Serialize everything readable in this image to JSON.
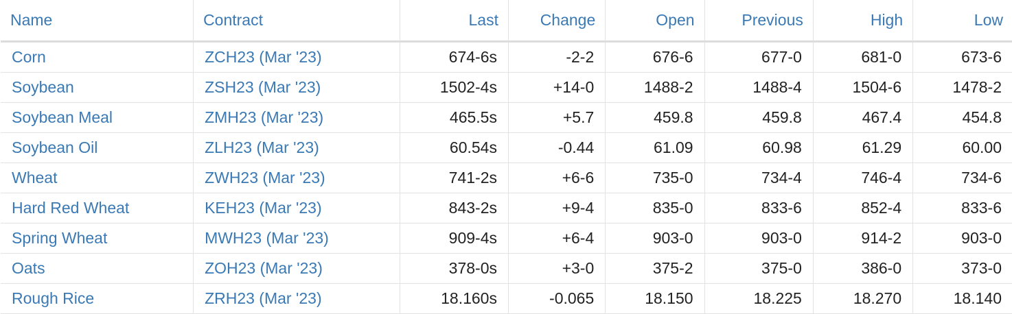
{
  "headers": {
    "name": "Name",
    "contract": "Contract",
    "last": "Last",
    "change": "Change",
    "open": "Open",
    "previous": "Previous",
    "high": "High",
    "low": "Low"
  },
  "colors": {
    "link": "#3a79b4",
    "positive": "#2f9a2f",
    "negative": "#e0201f"
  },
  "rows": [
    {
      "name": "Corn",
      "contract": "ZCH23 (Mar '23)",
      "last": "674-6s",
      "change": "-2-2",
      "direction": "down",
      "open": "676-6",
      "previous": "677-0",
      "high": "681-0",
      "low": "673-6"
    },
    {
      "name": "Soybean",
      "contract": "ZSH23 (Mar '23)",
      "last": "1502-4s",
      "change": "+14-0",
      "direction": "up",
      "open": "1488-2",
      "previous": "1488-4",
      "high": "1504-6",
      "low": "1478-2"
    },
    {
      "name": "Soybean Meal",
      "contract": "ZMH23 (Mar '23)",
      "last": "465.5s",
      "change": "+5.7",
      "direction": "up",
      "open": "459.8",
      "previous": "459.8",
      "high": "467.4",
      "low": "454.8"
    },
    {
      "name": "Soybean Oil",
      "contract": "ZLH23 (Mar '23)",
      "last": "60.54s",
      "change": "-0.44",
      "direction": "down",
      "open": "61.09",
      "previous": "60.98",
      "high": "61.29",
      "low": "60.00"
    },
    {
      "name": "Wheat",
      "contract": "ZWH23 (Mar '23)",
      "last": "741-2s",
      "change": "+6-6",
      "direction": "up",
      "open": "735-0",
      "previous": "734-4",
      "high": "746-4",
      "low": "734-6"
    },
    {
      "name": "Hard Red Wheat",
      "contract": "KEH23 (Mar '23)",
      "last": "843-2s",
      "change": "+9-4",
      "direction": "up",
      "open": "835-0",
      "previous": "833-6",
      "high": "852-4",
      "low": "833-6"
    },
    {
      "name": "Spring Wheat",
      "contract": "MWH23 (Mar '23)",
      "last": "909-4s",
      "change": "+6-4",
      "direction": "up",
      "open": "903-0",
      "previous": "903-0",
      "high": "914-2",
      "low": "903-0"
    },
    {
      "name": "Oats",
      "contract": "ZOH23 (Mar '23)",
      "last": "378-0s",
      "change": "+3-0",
      "direction": "up",
      "open": "375-2",
      "previous": "375-0",
      "high": "386-0",
      "low": "373-0"
    },
    {
      "name": "Rough Rice",
      "contract": "ZRH23 (Mar '23)",
      "last": "18.160s",
      "change": "-0.065",
      "direction": "down",
      "open": "18.150",
      "previous": "18.225",
      "high": "18.270",
      "low": "18.140"
    }
  ]
}
